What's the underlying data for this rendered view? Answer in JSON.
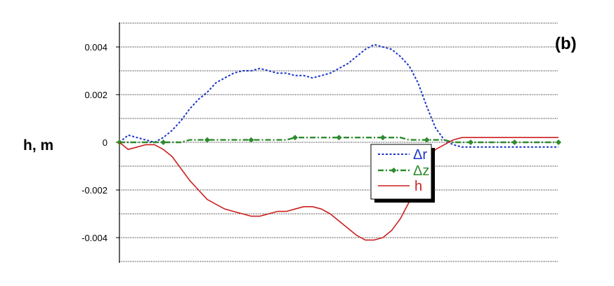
{
  "chart_data": {
    "type": "line",
    "title": "",
    "panel_label": "(b)",
    "ylabel": "h, m",
    "xlabel": "",
    "ylim": [
      -0.005,
      0.005
    ],
    "yticks": [
      0.004,
      0.002,
      0,
      -0.002,
      -0.004
    ],
    "ytick_labels": [
      "0.004",
      "0.002",
      "0",
      "-0.002",
      "-0.004"
    ],
    "grid": true,
    "legend_position": "center-right",
    "x": [
      0,
      2,
      4,
      6,
      8,
      10,
      12,
      14,
      16,
      18,
      20,
      22,
      24,
      26,
      28,
      30,
      32,
      34,
      36,
      38,
      40,
      42,
      44,
      46,
      48,
      50,
      52,
      54,
      56,
      58,
      60,
      62,
      64,
      66,
      68,
      70,
      72,
      74,
      76,
      78,
      80,
      82,
      84,
      86,
      88,
      90,
      92,
      94,
      96,
      98,
      100
    ],
    "series": [
      {
        "name": "Δr",
        "color": "#1a35c8",
        "style": "dotted",
        "values": [
          0.0,
          0.0003,
          0.0002,
          0.0001,
          0.0,
          0.0002,
          0.0005,
          0.0009,
          0.0014,
          0.0018,
          0.0021,
          0.0025,
          0.0027,
          0.0029,
          0.003,
          0.003,
          0.0031,
          0.003,
          0.0029,
          0.0029,
          0.0028,
          0.0028,
          0.0027,
          0.0028,
          0.0029,
          0.0031,
          0.0033,
          0.0036,
          0.0039,
          0.0041,
          0.004,
          0.0039,
          0.0036,
          0.0032,
          0.0025,
          0.0015,
          0.0006,
          0.0001,
          -0.0001,
          -0.0002,
          -0.0002,
          -0.0002,
          -0.0002,
          -0.0002,
          -0.0002,
          -0.0002,
          -0.0002,
          -0.0002,
          -0.0002,
          -0.0002,
          -0.0002
        ]
      },
      {
        "name": "Δz",
        "color": "#2e8b2e",
        "style": "dash-dot-markers",
        "values": [
          0.0,
          0.0,
          0.0,
          0.0,
          0.0,
          0.0,
          0.0,
          0.0,
          0.0001,
          0.0001,
          0.0001,
          0.0001,
          0.0001,
          0.0001,
          0.0001,
          0.0001,
          0.0001,
          0.0001,
          0.0001,
          0.0001,
          0.0002,
          0.0002,
          0.0002,
          0.0002,
          0.0002,
          0.0002,
          0.0002,
          0.0002,
          0.0002,
          0.0002,
          0.0002,
          0.0002,
          0.0002,
          0.0001,
          0.0001,
          0.0001,
          0.0001,
          0.0001,
          0.0,
          0.0,
          0.0,
          0.0,
          0.0,
          0.0,
          0.0,
          0.0,
          0.0,
          0.0,
          0.0,
          0.0,
          0.0
        ]
      },
      {
        "name": "h",
        "color": "#cc1f1f",
        "style": "solid",
        "values": [
          0.0,
          -0.0003,
          -0.0002,
          -0.0001,
          -0.0001,
          -0.0003,
          -0.0006,
          -0.0011,
          -0.0016,
          -0.002,
          -0.0024,
          -0.0026,
          -0.0028,
          -0.0029,
          -0.003,
          -0.0031,
          -0.0031,
          -0.003,
          -0.0029,
          -0.0029,
          -0.0028,
          -0.0027,
          -0.0027,
          -0.0028,
          -0.003,
          -0.0033,
          -0.0036,
          -0.0039,
          -0.0041,
          -0.0041,
          -0.004,
          -0.0037,
          -0.0032,
          -0.0025,
          -0.0016,
          -0.0008,
          -0.0003,
          -0.0001,
          0.0001,
          0.0002,
          0.0002,
          0.0002,
          0.0002,
          0.0002,
          0.0002,
          0.0002,
          0.0002,
          0.0002,
          0.0002,
          0.0002,
          0.0002
        ]
      }
    ]
  }
}
